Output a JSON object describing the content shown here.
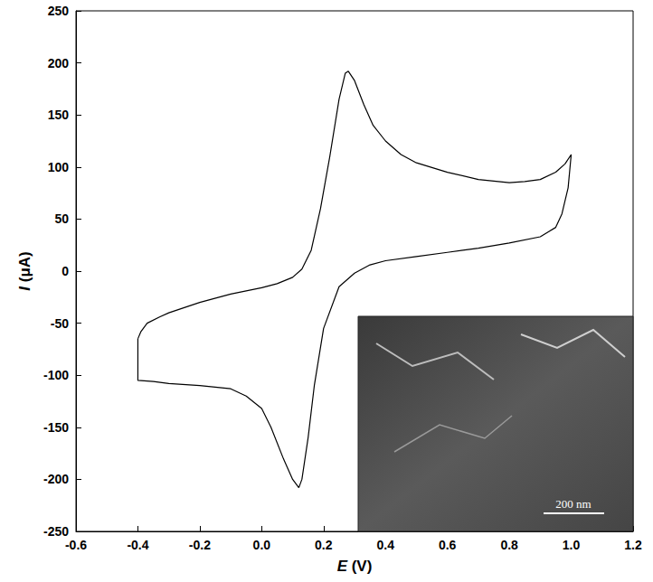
{
  "chart_data": {
    "type": "line",
    "xlabel": "E (V)",
    "ylabel": "I (μA)",
    "x": [
      -0.4,
      -0.39,
      -0.37,
      -0.33,
      -0.3,
      -0.2,
      -0.1,
      0.0,
      0.05,
      0.1,
      0.13,
      0.16,
      0.19,
      0.22,
      0.25,
      0.27,
      0.28,
      0.3,
      0.33,
      0.36,
      0.4,
      0.45,
      0.5,
      0.6,
      0.7,
      0.8,
      0.85,
      0.9,
      0.95,
      0.98,
      1.0,
      0.99,
      0.97,
      0.95,
      0.9,
      0.8,
      0.7,
      0.6,
      0.5,
      0.4,
      0.35,
      0.3,
      0.25,
      0.2,
      0.17,
      0.15,
      0.13,
      0.12,
      0.1,
      0.07,
      0.03,
      0.0,
      -0.05,
      -0.1,
      -0.2,
      -0.3,
      -0.35,
      -0.4,
      -0.4
    ],
    "values": [
      -65,
      -58,
      -50,
      -44,
      -40,
      -30,
      -22,
      -16,
      -12,
      -6,
      2,
      20,
      60,
      110,
      165,
      190,
      192,
      183,
      160,
      140,
      125,
      112,
      104,
      95,
      88,
      85,
      86,
      88,
      95,
      103,
      112,
      80,
      55,
      42,
      33,
      27,
      22,
      18,
      14,
      10,
      6,
      -2,
      -15,
      -55,
      -110,
      -160,
      -200,
      -208,
      -200,
      -180,
      -150,
      -132,
      -120,
      -113,
      -110,
      -108,
      -106,
      -105,
      -65
    ],
    "xlim": [
      -0.6,
      1.2
    ],
    "xticks": [
      -0.6,
      -0.4,
      -0.2,
      {
        "value": 0,
        "label": "0.0"
      },
      0.2,
      0.4,
      0.6,
      0.8,
      {
        "value": 1,
        "label": "1.0"
      },
      1.2
    ],
    "ylim": [
      -250,
      250
    ],
    "yticks": [
      -250,
      -200,
      -150,
      -100,
      -50,
      0,
      50,
      100,
      150,
      200,
      250
    ],
    "color": "#000000",
    "grid": false,
    "annotations": [
      "200 nm"
    ]
  }
}
